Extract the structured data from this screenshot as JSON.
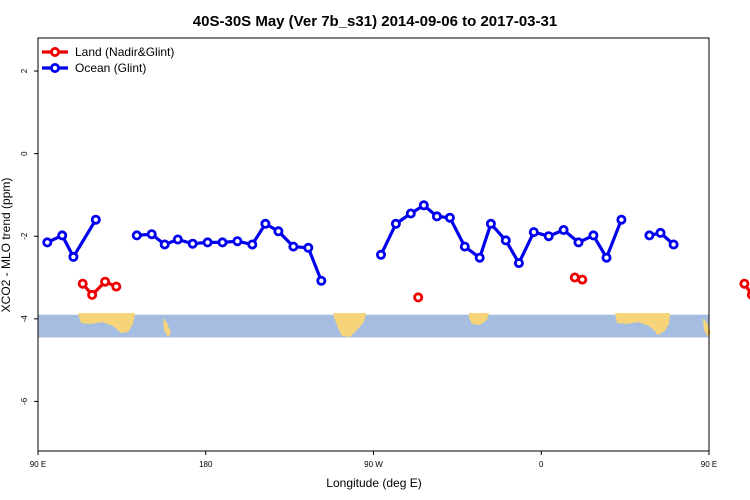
{
  "chart_data": {
    "type": "line",
    "title": "40S-30S May (Ver 7b_s31)   2014-09-06 to 2017-03-31",
    "xlabel": "Longitude (deg E)",
    "ylabel": "XCO2 - MLO trend (ppm)",
    "xlim": [
      90,
      450
    ],
    "ylim": [
      -7.2,
      2.8
    ],
    "x_ticks": [
      {
        "value": 90,
        "label": "90 E"
      },
      {
        "value": 180,
        "label": "180"
      },
      {
        "value": 270,
        "label": "90 W"
      },
      {
        "value": 360,
        "label": "0"
      },
      {
        "value": 450,
        "label": "90 E"
      },
      {
        "value": 540,
        "label": "180"
      }
    ],
    "y_ticks": [
      {
        "value": 2,
        "label": "2"
      },
      {
        "value": 0,
        "label": "0"
      },
      {
        "value": -2,
        "label": "-2"
      },
      {
        "value": -4,
        "label": "-4"
      },
      {
        "value": -6,
        "label": "-6"
      }
    ],
    "grid": false,
    "legend_position": "top-left",
    "series": [
      {
        "name": "Land (Nadir&Glint)",
        "color": "#ee0000",
        "segments": [
          [
            [
              114,
              -3.15
            ],
            [
              119,
              -3.42
            ],
            [
              126,
              -3.1
            ],
            [
              132,
              -3.22
            ]
          ],
          [
            [
              294,
              -3.48
            ]
          ],
          [
            [
              378,
              -3.0
            ],
            [
              382,
              -3.05
            ]
          ],
          [
            [
              469,
              -3.15
            ],
            [
              473,
              -3.42
            ],
            [
              480,
              -3.1
            ],
            [
              486,
              -3.22
            ]
          ]
        ]
      },
      {
        "name": "Ocean (Glint)",
        "color": "#0000ee",
        "segments": [
          [
            [
              95,
              -2.15
            ],
            [
              103,
              -1.98
            ],
            [
              109,
              -2.5
            ],
            [
              121,
              -1.6
            ]
          ],
          [
            [
              143,
              -1.98
            ],
            [
              151,
              -1.95
            ],
            [
              158,
              -2.2
            ],
            [
              165,
              -2.08
            ],
            [
              173,
              -2.18
            ],
            [
              181,
              -2.15
            ],
            [
              189,
              -2.15
            ],
            [
              197,
              -2.12
            ],
            [
              205,
              -2.2
            ],
            [
              212,
              -1.7
            ],
            [
              219,
              -1.88
            ],
            [
              227,
              -2.25
            ],
            [
              235,
              -2.28
            ],
            [
              242,
              -3.08
            ]
          ],
          [
            [
              274,
              -2.45
            ],
            [
              282,
              -1.7
            ],
            [
              290,
              -1.45
            ],
            [
              297,
              -1.25
            ],
            [
              304,
              -1.52
            ],
            [
              311,
              -1.55
            ],
            [
              319,
              -2.25
            ],
            [
              327,
              -2.52
            ],
            [
              333,
              -1.7
            ],
            [
              341,
              -2.1
            ],
            [
              348,
              -2.65
            ],
            [
              356,
              -1.9
            ],
            [
              364,
              -2.0
            ],
            [
              372,
              -1.85
            ],
            [
              380,
              -2.15
            ],
            [
              388,
              -1.98
            ],
            [
              395,
              -2.52
            ],
            [
              403,
              -1.6
            ]
          ],
          [
            [
              418,
              -1.98
            ],
            [
              424,
              -1.92
            ],
            [
              431,
              -2.2
            ]
          ]
        ]
      }
    ],
    "map_strip": {
      "y_range": [
        -4.45,
        -3.9
      ],
      "ocean_color": "#a5bde0",
      "land_color": "#f7d47a"
    }
  }
}
